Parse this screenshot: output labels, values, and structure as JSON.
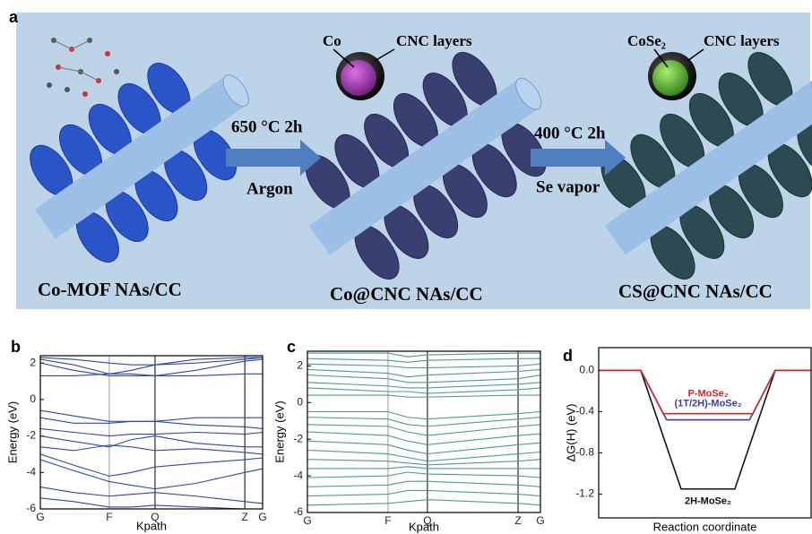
{
  "figure_a": {
    "label": "a",
    "core_label_1": "Co",
    "shell_label_1": "CNC layers",
    "core_label_2": "CoSe₂",
    "shell_label_2": "CNC layers",
    "step_1_condition": "650 °C 2h",
    "step_1_gas": "Argon",
    "step_2_condition": "400 °C 2h",
    "step_2_gas": "Se vapor",
    "stage_1": "Co-MOF NAs/CC",
    "stage_2": "Co@CNC NAs/CC",
    "stage_3": "CS@CNC NAs/CC"
  },
  "chart_data": [
    {
      "type": "line",
      "panel": "b",
      "ylabel": "Energy (eV)",
      "xlabel": "Kpath",
      "color": "#2e47a8",
      "x": [
        0,
        0.15,
        0.31,
        0.41,
        0.516,
        0.7,
        0.92,
        1.0
      ],
      "xlim": [
        0,
        1
      ],
      "xticks": [
        {
          "value": 0,
          "label": "G"
        },
        {
          "value": 0.31,
          "label": "F"
        },
        {
          "value": 0.516,
          "label": "Q"
        },
        {
          "value": 0.92,
          "label": "Z"
        },
        {
          "value": 1.0,
          "label": "G"
        }
      ],
      "ylim": [
        -6,
        2.4
      ],
      "yticks": [
        -6,
        -4,
        -2,
        0,
        2
      ],
      "series": [
        {
          "values": [
            2.3,
            2.2,
            2.0,
            1.9,
            1.9,
            2.0,
            2.2,
            2.3
          ]
        },
        {
          "values": [
            2.2,
            1.9,
            1.4,
            1.4,
            1.3,
            1.6,
            2.1,
            2.2
          ]
        },
        {
          "values": [
            2.0,
            1.6,
            1.3,
            1.3,
            1.3,
            1.3,
            1.4,
            1.4
          ]
        },
        {
          "values": [
            1.3,
            1.3,
            1.4,
            1.6,
            1.9,
            2.2,
            2.3,
            2.3
          ]
        },
        {
          "values": [
            -0.6,
            -0.9,
            -1.2,
            -1.2,
            -1.2,
            -1.0,
            -1.0,
            -1.0
          ]
        },
        {
          "values": [
            -1.0,
            -1.3,
            -1.3,
            -1.2,
            -1.2,
            -1.4,
            -1.5,
            -1.6
          ]
        },
        {
          "values": [
            -1.6,
            -1.8,
            -2.0,
            -1.9,
            -1.9,
            -1.8,
            -1.9,
            -1.8
          ]
        },
        {
          "values": [
            -2.0,
            -2.3,
            -2.6,
            -2.2,
            -2.0,
            -2.4,
            -2.6,
            -2.6
          ]
        },
        {
          "values": [
            -2.6,
            -2.8,
            -2.5,
            -2.6,
            -2.8,
            -2.7,
            -2.9,
            -3.0
          ]
        },
        {
          "values": [
            -3.0,
            -3.6,
            -4.2,
            -4.0,
            -3.7,
            -3.5,
            -3.3,
            -3.2
          ]
        },
        {
          "values": [
            -3.3,
            -3.9,
            -4.5,
            -4.7,
            -4.9,
            -4.6,
            -4.0,
            -3.8
          ]
        },
        {
          "values": [
            -4.8,
            -5.1,
            -5.3,
            -5.2,
            -5.1,
            -5.3,
            -5.6,
            -5.7
          ]
        },
        {
          "values": [
            -5.4,
            -5.6,
            -5.9,
            -5.9,
            -5.8,
            -5.9,
            -6,
            -6
          ]
        }
      ]
    },
    {
      "type": "line",
      "panel": "c",
      "ylabel": "Energy (eV)",
      "xlabel": "Kpath",
      "color": "#4f9a94",
      "x": [
        0,
        0.346,
        0.43,
        0.515,
        0.904,
        1.0
      ],
      "xlim": [
        0,
        1
      ],
      "xticks": [
        {
          "value": 0,
          "label": "G"
        },
        {
          "value": 0.346,
          "label": "F"
        },
        {
          "value": 0.515,
          "label": "Q"
        },
        {
          "value": 0.904,
          "label": "Z"
        },
        {
          "value": 1.0,
          "label": "G"
        }
      ],
      "ylim": [
        -6,
        2.8
      ],
      "yticks": [
        -6,
        -4,
        -2,
        0,
        2
      ],
      "series": [
        {
          "values": [
            2.7,
            2.7,
            2.5,
            2.6,
            2.7,
            2.7
          ]
        },
        {
          "values": [
            2.4,
            2.3,
            2.2,
            2.3,
            2.4,
            2.4
          ]
        },
        {
          "values": [
            2.1,
            2.0,
            1.9,
            1.9,
            2.0,
            2.1
          ]
        },
        {
          "values": [
            1.8,
            1.6,
            1.4,
            1.5,
            1.7,
            1.8
          ]
        },
        {
          "values": [
            1.5,
            1.3,
            1.1,
            1.1,
            1.3,
            1.5
          ]
        },
        {
          "values": [
            1.1,
            0.9,
            0.8,
            0.8,
            1.0,
            1.1
          ]
        },
        {
          "values": [
            0.8,
            0.6,
            0.6,
            0.5,
            0.7,
            0.8
          ]
        },
        {
          "values": [
            0.4,
            0.4,
            0.3,
            0.3,
            0.4,
            0.4
          ]
        },
        {
          "values": [
            -0.5,
            -0.5,
            -0.8,
            -0.9,
            -0.6,
            -0.5
          ]
        },
        {
          "values": [
            -0.8,
            -0.9,
            -1.2,
            -1.3,
            -0.9,
            -0.8
          ]
        },
        {
          "values": [
            -1.2,
            -1.3,
            -1.6,
            -1.8,
            -1.3,
            -1.2
          ]
        },
        {
          "values": [
            -1.6,
            -1.8,
            -2.1,
            -2.3,
            -1.8,
            -1.7
          ]
        },
        {
          "values": [
            -2.1,
            -2.3,
            -2.6,
            -2.8,
            -2.3,
            -2.2
          ]
        },
        {
          "values": [
            -2.6,
            -2.8,
            -3.0,
            -3.2,
            -2.8,
            -2.7
          ]
        },
        {
          "values": [
            -3.1,
            -3.2,
            -3.3,
            -3.4,
            -3.2,
            -3.1
          ]
        },
        {
          "values": [
            -3.6,
            -3.6,
            -3.5,
            -3.6,
            -3.6,
            -3.6
          ]
        },
        {
          "values": [
            -4.1,
            -4.0,
            -3.8,
            -3.9,
            -4.0,
            -4.1
          ]
        },
        {
          "values": [
            -4.6,
            -4.5,
            -4.3,
            -4.3,
            -4.5,
            -4.6
          ]
        },
        {
          "values": [
            -5.1,
            -5.0,
            -4.8,
            -4.8,
            -5.0,
            -5.1
          ]
        },
        {
          "values": [
            -5.6,
            -5.5,
            -5.4,
            -5.3,
            -5.5,
            -5.6
          ]
        }
      ]
    },
    {
      "type": "line",
      "panel": "d",
      "ylabel": "ΔG(H) (eV)",
      "xlabel": "Reaction coordinate",
      "xlim": [
        0,
        1
      ],
      "ylim": [
        -1.43,
        0.22
      ],
      "yticks": [
        {
          "value": 0,
          "label": "0.0"
        },
        -0.4,
        -0.8,
        -1.2
      ],
      "series": [
        {
          "name": "2H-MoSe₂",
          "color": "#111111",
          "x": [
            0,
            0.198,
            0.388,
            0.641,
            0.831,
            1.0
          ],
          "values": [
            0,
            0,
            -1.15,
            -1.15,
            0,
            0
          ]
        },
        {
          "name": "(1T/2H)-MoSe₂",
          "color": "#3a3ab8",
          "x": [
            0,
            0.198,
            0.32,
            0.71,
            0.831,
            1.0
          ],
          "values": [
            0,
            0,
            -0.48,
            -0.48,
            0,
            0
          ]
        },
        {
          "name": "P-MoSe₂",
          "color": "#d62728",
          "x": [
            0,
            0.198,
            0.304,
            0.726,
            0.831,
            1.0
          ],
          "values": [
            0,
            0,
            -0.42,
            -0.42,
            0,
            0
          ]
        }
      ]
    }
  ]
}
